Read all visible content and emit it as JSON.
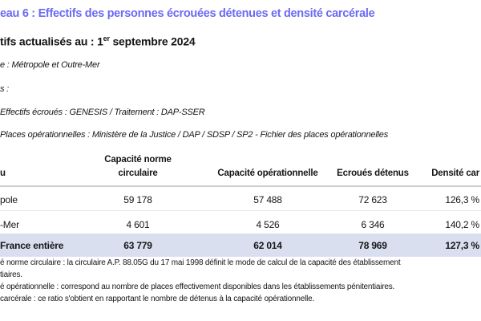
{
  "title": "eau 6 : Effectifs des personnes écrouées détenues et densité carcérale",
  "subtitle": {
    "prefix": "tifs actualisés au : 1",
    "sup": "er",
    "suffix": " septembre 2024"
  },
  "meta": [
    "e : Métropole et Outre-Mer",
    "s :",
    "Effectifs écroués : GENESIS / Traitement : DAP-SSER",
    "Places opérationnelles : Ministère de la Justice / DAP / SDSP / SP2 - Fichier des places opérationnelles"
  ],
  "table": {
    "headers": [
      "u",
      "Capacité norme",
      "circulaire",
      "Capacité opérationnelle",
      "Ecroués détenus",
      "Densité car"
    ],
    "rows": [
      [
        "pole",
        "59 178",
        "57 488",
        "72 623",
        "126,3 %"
      ],
      [
        "-Mer",
        "4 601",
        "4 526",
        "6 346",
        "140,2 %"
      ]
    ],
    "total": [
      "France entière",
      "63 779",
      "62 014",
      "78 969",
      "127,3 %"
    ]
  },
  "notes": [
    "é norme circulaire : la circulaire A.P. 88.05G du 17 mai 1998 définit le mode de calcul de la capacité des établissement",
    "tiaires.",
    "é opérationnelle : correspond au nombre de places effectivement disponibles dans les établissements pénitentiaires.",
    "carcérale : ce ratio s'obtient en rapportant le nombre de détenus à la capacité opérationnelle."
  ],
  "colors": {
    "title": "#6a6af4",
    "total_row": "#dadff0"
  }
}
